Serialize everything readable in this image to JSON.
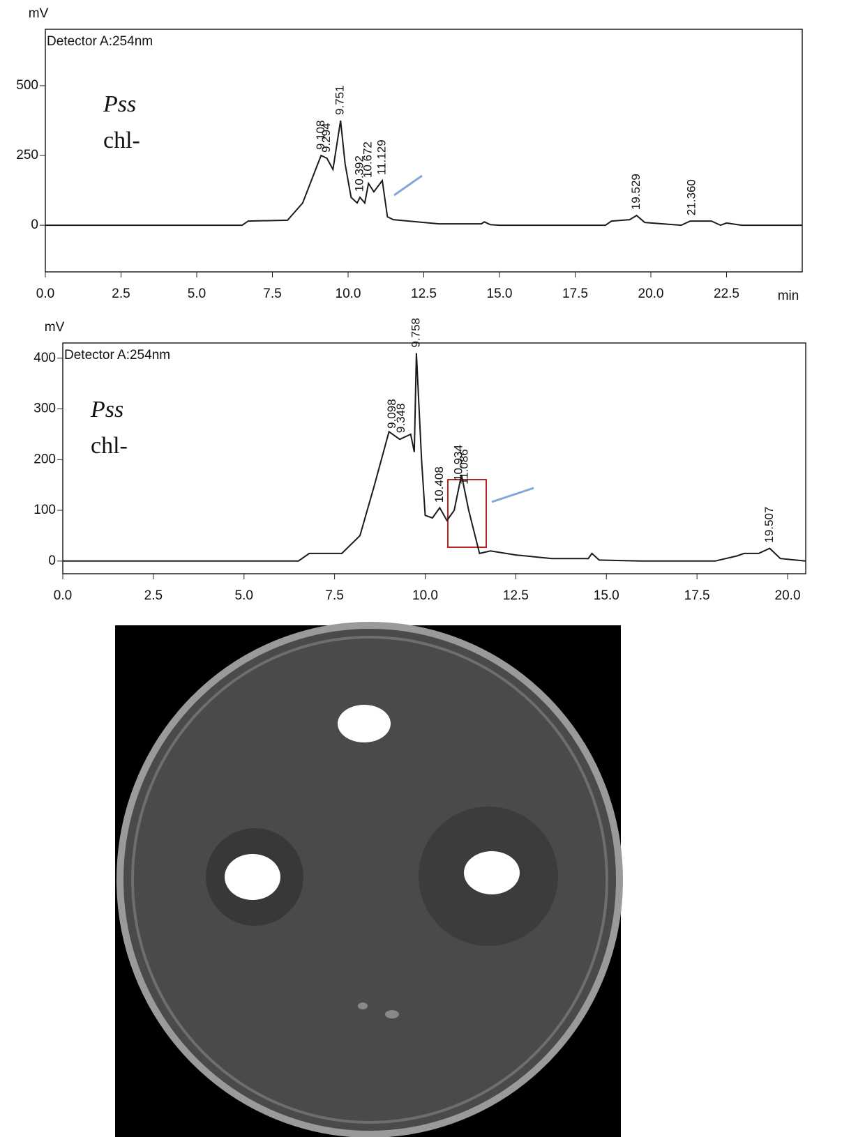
{
  "chart_data": [
    {
      "type": "line",
      "x_label": "min",
      "y_label": "mV",
      "detector_label": "Detector A:254nm",
      "sample_label": "Pss",
      "condition_label": "chl-",
      "xlim": [
        0,
        25
      ],
      "ylim": [
        -167,
        702
      ],
      "xticks": [
        {
          "value": 0,
          "label": "0.0"
        },
        2.5,
        {
          "value": 5,
          "label": "5.0"
        },
        7.5,
        {
          "value": 10,
          "label": "10.0"
        },
        12.5,
        {
          "value": 15,
          "label": "15.0"
        },
        17.5,
        {
          "value": 20,
          "label": "20.0"
        },
        22.5
      ],
      "yticks": [
        0,
        250,
        500
      ],
      "x": [
        0,
        6.5,
        6.7,
        8.0,
        8.5,
        9.0,
        9.108,
        9.3,
        9.5,
        9.751,
        9.9,
        10.1,
        10.3,
        10.392,
        10.55,
        10.672,
        10.85,
        11.129,
        11.3,
        11.5,
        12.0,
        13.0,
        14.4,
        14.5,
        14.7,
        15.0,
        18.5,
        18.7,
        19.3,
        19.529,
        19.8,
        21.0,
        21.3,
        22.0,
        22.3,
        22.5,
        23.0,
        25.0
      ],
      "color": "#1a1a1a",
      "values": [
        0,
        0,
        15,
        18,
        80,
        220,
        250,
        240,
        200,
        375,
        220,
        100,
        80,
        100,
        80,
        150,
        120,
        160,
        30,
        20,
        15,
        5,
        5,
        12,
        2,
        0,
        0,
        15,
        20,
        35,
        10,
        0,
        15,
        15,
        0,
        8,
        0,
        0
      ],
      "peak_labels": [
        "9.108",
        "9.294",
        "9.751",
        "10.392",
        "10.672",
        "11.129",
        "19.529",
        "21.360"
      ]
    },
    {
      "type": "line",
      "y_label": "mV",
      "detector_label": "Detector A:254nm",
      "sample_label": "Pss",
      "condition_label": "chl-",
      "xlim": [
        0,
        20.5
      ],
      "ylim": [
        -25,
        430
      ],
      "xticks": [
        {
          "value": 0,
          "label": "0.0"
        },
        2.5,
        {
          "value": 5,
          "label": "5.0"
        },
        7.5,
        {
          "value": 10,
          "label": "10.0"
        },
        12.5,
        {
          "value": 15,
          "label": "15.0"
        },
        17.5,
        {
          "value": 20,
          "label": "20.0"
        }
      ],
      "yticks": [
        0,
        100,
        200,
        300,
        400
      ],
      "x": [
        0,
        6.5,
        6.8,
        7.7,
        8.2,
        8.6,
        9.0,
        9.3,
        9.6,
        9.7,
        9.758,
        9.9,
        10.0,
        10.2,
        10.4,
        10.6,
        10.8,
        11.0,
        11.2,
        11.5,
        11.8,
        12.5,
        13.5,
        14.5,
        14.6,
        14.8,
        16.0,
        18.0,
        18.6,
        18.8,
        19.2,
        19.507,
        19.8,
        20.5
      ],
      "color": "#1a1a1a",
      "values": [
        0,
        0,
        15,
        15,
        50,
        150,
        255,
        240,
        250,
        215,
        410,
        200,
        90,
        85,
        105,
        80,
        100,
        170,
        100,
        15,
        20,
        12,
        5,
        5,
        15,
        2,
        0,
        0,
        10,
        15,
        15,
        25,
        5,
        0
      ],
      "peak_labels": [
        "9.098",
        "9.348",
        "9.758",
        "10.408",
        "10.934",
        "11.086",
        "19.507"
      ]
    }
  ]
}
